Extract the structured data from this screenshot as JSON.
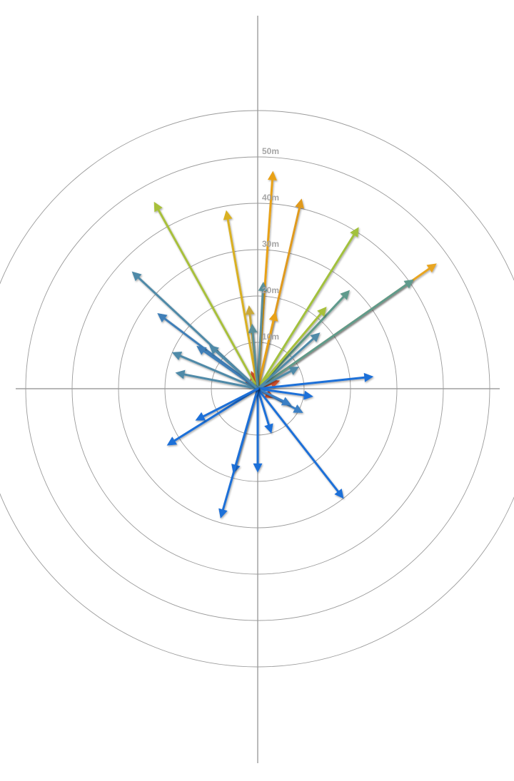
{
  "chart_data": {
    "type": "polar-vector",
    "title": "",
    "radial_unit": "m",
    "rmax": 50,
    "rings": [
      10,
      20,
      30,
      40,
      50
    ],
    "ring_labels": [
      "10m",
      "20m",
      "30m",
      "40m",
      "50m"
    ],
    "outer_ring_extra": 60,
    "grid": true,
    "angle_convention": "degrees clockwise from up (north)",
    "vectors": [
      {
        "angle": 4,
        "length": 47,
        "color": "#e8a117"
      },
      {
        "angle": 13,
        "length": 42,
        "color": "#e09a1f"
      },
      {
        "angle": 13,
        "length": 17,
        "color": "#e8a117"
      },
      {
        "angle": -10,
        "length": 39,
        "color": "#d9b020"
      },
      {
        "angle": -29,
        "length": 46,
        "color": "#a8c03a"
      },
      {
        "angle": 32,
        "length": 41,
        "color": "#a2c13c"
      },
      {
        "angle": 55,
        "length": 47,
        "color": "#e8a520"
      },
      {
        "angle": 55,
        "length": 41,
        "color": "#5f9a8c"
      },
      {
        "angle": 43,
        "length": 29,
        "color": "#5f9a8c"
      },
      {
        "angle": 40,
        "length": 23,
        "color": "#a8c03a"
      },
      {
        "angle": 3,
        "length": 23,
        "color": "#5a8f9a"
      },
      {
        "angle": -6,
        "length": 18,
        "color": "#c8a83a"
      },
      {
        "angle": -5,
        "length": 14,
        "color": "#5a8f9a"
      },
      {
        "angle": -47,
        "length": 37,
        "color": "#4f8aa8"
      },
      {
        "angle": -53,
        "length": 27,
        "color": "#3f7fb8"
      },
      {
        "angle": -67,
        "length": 20,
        "color": "#4f8aa8"
      },
      {
        "angle": -79,
        "length": 18,
        "color": "#4f8aa8"
      },
      {
        "angle": -55,
        "length": 16,
        "color": "#3f7fb8"
      },
      {
        "angle": -48,
        "length": 14,
        "color": "#4f8aa8"
      },
      {
        "angle": 48,
        "length": 18,
        "color": "#4f8aa8"
      },
      {
        "angle": 62,
        "length": 10,
        "color": "#4f8aa8"
      },
      {
        "angle": 84,
        "length": 25,
        "color": "#1f6fd8"
      },
      {
        "angle": 98,
        "length": 12,
        "color": "#1f6fd8"
      },
      {
        "angle": 118,
        "length": 11,
        "color": "#3a7fc4"
      },
      {
        "angle": 116,
        "length": 8,
        "color": "#3a7fc4"
      },
      {
        "angle": 142,
        "length": 30,
        "color": "#1f6fd8"
      },
      {
        "angle": 163,
        "length": 10,
        "color": "#1f6fd8"
      },
      {
        "angle": 180,
        "length": 18,
        "color": "#1f6fd8"
      },
      {
        "angle": 196,
        "length": 19,
        "color": "#1f6fd8"
      },
      {
        "angle": 196,
        "length": 29,
        "color": "#1f6fd8"
      },
      {
        "angle": 238,
        "length": 23,
        "color": "#1f6fd8"
      },
      {
        "angle": 243,
        "length": 15,
        "color": "#1f6fd8"
      }
    ],
    "small_vectors": [
      {
        "angle": 70,
        "length": 5,
        "color": "#d2502a"
      },
      {
        "angle": 120,
        "length": 4,
        "color": "#d2502a"
      },
      {
        "angle": -60,
        "length": 3,
        "color": "#d2502a"
      },
      {
        "angle": -20,
        "length": 4,
        "color": "#d2502a"
      }
    ]
  }
}
